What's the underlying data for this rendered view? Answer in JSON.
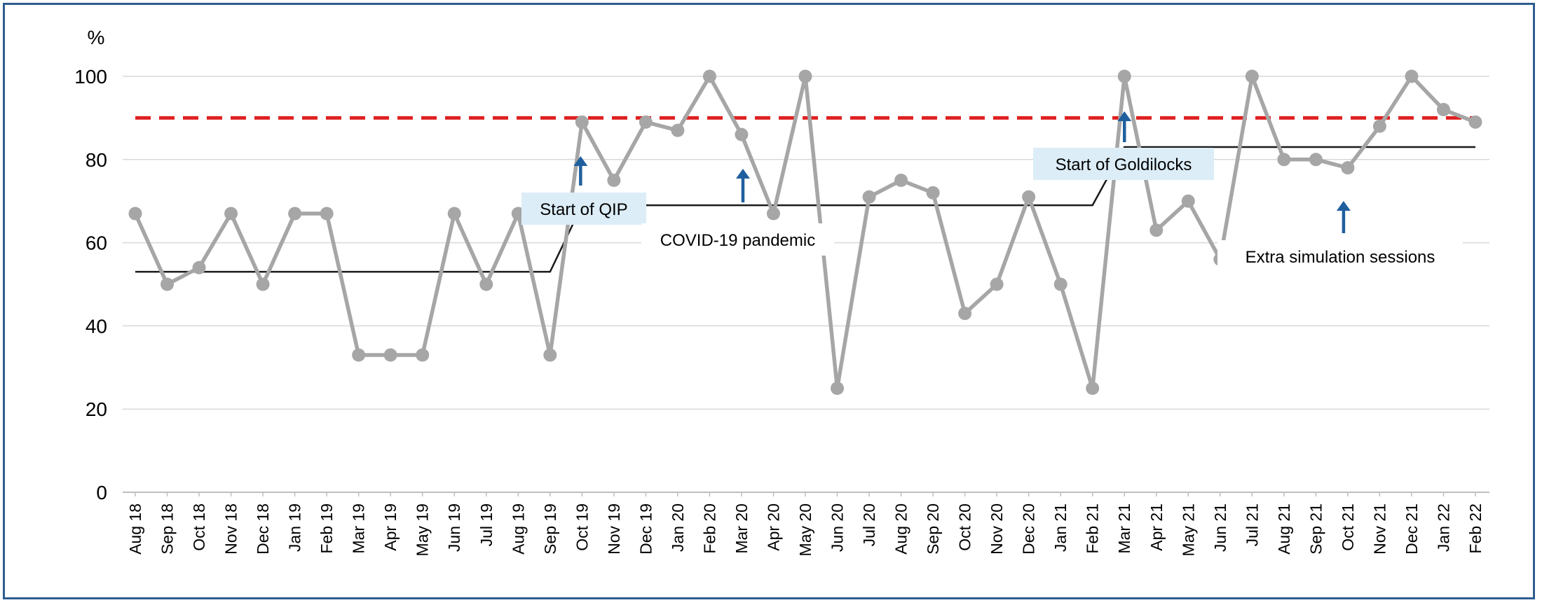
{
  "chart_data": {
    "type": "line",
    "ylabel": "%",
    "ylim": [
      0,
      100
    ],
    "yticks": [
      0,
      20,
      40,
      60,
      80,
      100
    ],
    "grid": true,
    "categories": [
      "Aug 18",
      "Sep 18",
      "Oct 18",
      "Nov 18",
      "Dec 18",
      "Jan 19",
      "Feb 19",
      "Mar 19",
      "Apr 19",
      "May 19",
      "Jun 19",
      "Jul 19",
      "Aug 19",
      "Sep 19",
      "Oct 19",
      "Nov 19",
      "Dec 19",
      "Jan 20",
      "Feb 20",
      "Mar 20",
      "Apr 20",
      "May 20",
      "Jun 20",
      "Jul 20",
      "Aug 20",
      "Sep 20",
      "Oct 20",
      "Nov 20",
      "Dec 20",
      "Jan 21",
      "Feb 21",
      "Mar 21",
      "Apr 21",
      "May 21",
      "Jun 21",
      "Jul 21",
      "Aug 21",
      "Sep 21",
      "Oct 21",
      "Nov 21",
      "Dec 21",
      "Jan 22",
      "Feb 22"
    ],
    "series": [
      {
        "color": "#a6a6a6",
        "marker": "circle",
        "values": [
          67,
          50,
          54,
          67,
          50,
          67,
          67,
          33,
          33,
          33,
          67,
          50,
          67,
          33,
          89,
          75,
          89,
          87,
          100,
          86,
          67,
          100,
          25,
          71,
          75,
          72,
          43,
          50,
          71,
          50,
          25,
          100,
          63,
          70,
          56,
          100,
          80,
          80,
          78,
          88,
          100,
          92,
          89
        ]
      }
    ],
    "median_line": {
      "color": "#1a1a1a",
      "segments": [
        {
          "from": "Aug 18",
          "to": "Sep 19",
          "value": 53
        },
        {
          "from": "Oct 19",
          "to": "May 20",
          "value": 69,
          "rise_from": "Sep 19"
        },
        {
          "from": "Jun 20",
          "to": "Feb 21",
          "value": 69
        },
        {
          "from": "Mar 21",
          "to": "Feb 22",
          "value": 83,
          "rise_from": "Feb 21"
        }
      ]
    },
    "target_line": {
      "value": 90,
      "color": "#e02020",
      "style": "dashed"
    },
    "annotations": [
      {
        "text": "Start of QIP",
        "at": "Oct 19",
        "arrow": true,
        "boxed": true
      },
      {
        "text": "COVID-19 pandemic",
        "at": "Mar 20",
        "arrow": true,
        "boxed": false
      },
      {
        "text": "Start of Goldilocks",
        "at": "Mar 21",
        "arrow": true,
        "boxed": true
      },
      {
        "text": "Extra simulation sessions",
        "at": "Oct 21",
        "arrow": true,
        "boxed": false
      }
    ],
    "arrow_color": "#1f5f9e",
    "annotation_box_color": "#dcedf7"
  }
}
